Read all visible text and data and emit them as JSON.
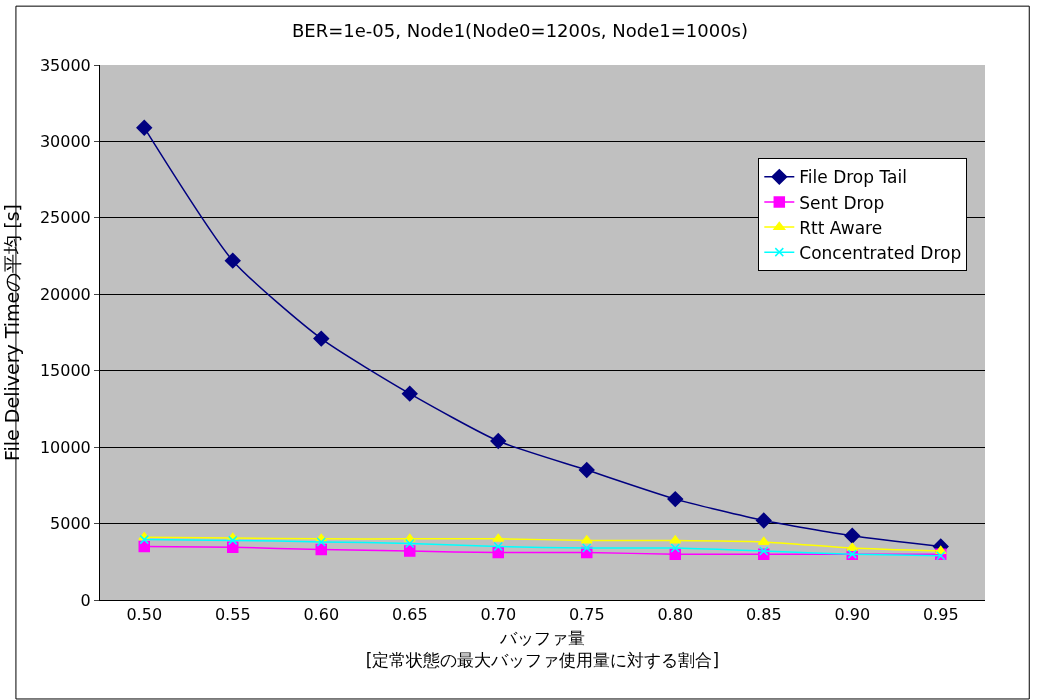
{
  "chart_data": {
    "type": "line",
    "title": "BER=1e-05, Node1(Node0=1200s, Node1=1000s)",
    "xlabel": "バッファ量\n[定常状態の最大バッファ使用量に対する割合]",
    "ylabel": "File Delivery Timeの平均 [s]",
    "categories": [
      "0.50",
      "0.55",
      "0.60",
      "0.65",
      "0.70",
      "0.75",
      "0.80",
      "0.85",
      "0.90",
      "0.95"
    ],
    "series": [
      {
        "name": "File Drop Tail",
        "color": "#000080",
        "marker": "diamond",
        "values": [
          30900,
          22200,
          17100,
          13500,
          10400,
          8500,
          6600,
          5200,
          4200,
          3500
        ]
      },
      {
        "name": "Sent Drop",
        "color": "#ff00ff",
        "marker": "square",
        "values": [
          3500,
          3450,
          3300,
          3200,
          3100,
          3100,
          3000,
          3000,
          3000,
          3000
        ]
      },
      {
        "name": "Rtt Aware",
        "color": "#ffff00",
        "marker": "triangle",
        "values": [
          4100,
          4050,
          4000,
          4000,
          4000,
          3900,
          3900,
          3800,
          3400,
          3200
        ]
      },
      {
        "name": "Concentrated Drop",
        "color": "#00ffff",
        "marker": "cross",
        "values": [
          3950,
          3900,
          3800,
          3700,
          3500,
          3400,
          3400,
          3200,
          3000,
          2900
        ]
      }
    ],
    "ylim": [
      0,
      35000
    ],
    "yticks": [
      0,
      5000,
      10000,
      15000,
      20000,
      25000,
      30000,
      35000
    ],
    "grid": "y",
    "legend": "right"
  }
}
